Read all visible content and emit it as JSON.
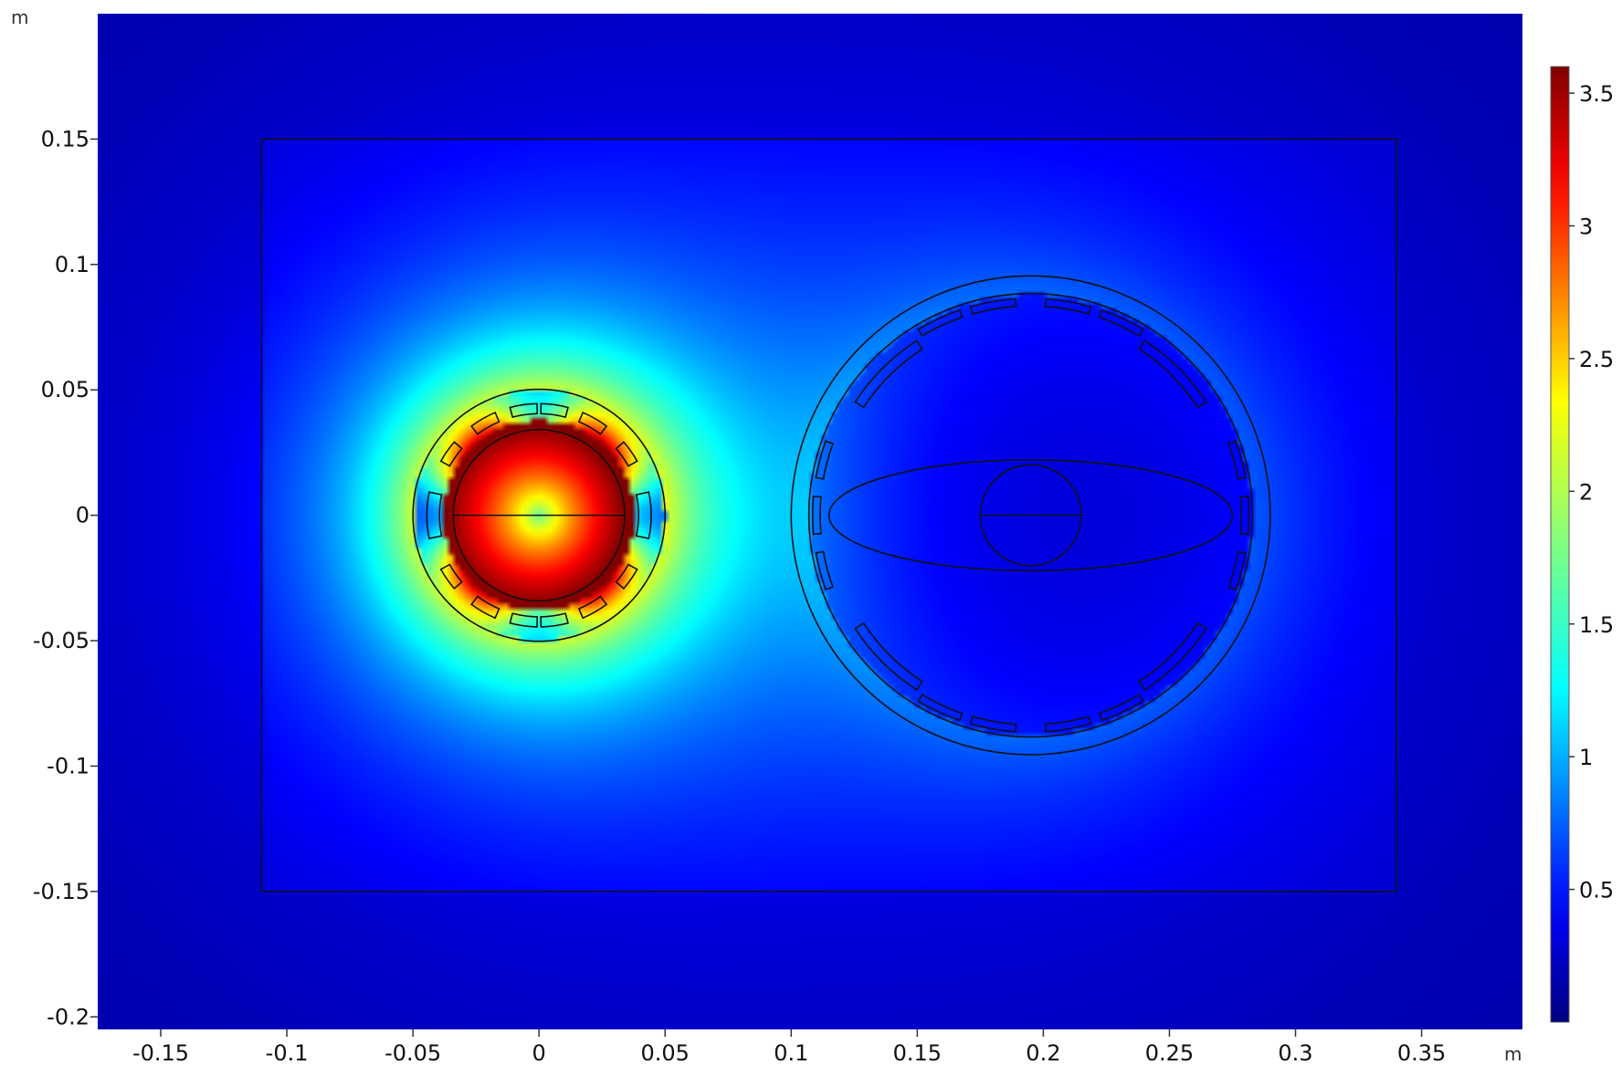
{
  "chart_data": {
    "type": "heatmap",
    "title": "",
    "xlabel": "m",
    "ylabel": "m",
    "xlim": [
      -0.175,
      0.39
    ],
    "ylim": [
      -0.205,
      0.2
    ],
    "x_ticks": [
      {
        "value": -0.15,
        "label": "-0.15"
      },
      {
        "value": -0.1,
        "label": "-0.1"
      },
      {
        "value": -0.05,
        "label": "-0.05"
      },
      {
        "value": 0,
        "label": "0"
      },
      {
        "value": 0.05,
        "label": "0.05"
      },
      {
        "value": 0.1,
        "label": "0.1"
      },
      {
        "value": 0.15,
        "label": "0.15"
      },
      {
        "value": 0.2,
        "label": "0.2"
      },
      {
        "value": 0.25,
        "label": "0.25"
      },
      {
        "value": 0.3,
        "label": "0.3"
      },
      {
        "value": 0.35,
        "label": "0.35"
      }
    ],
    "y_ticks": [
      {
        "value": 0.15,
        "label": "0.15"
      },
      {
        "value": 0.1,
        "label": "0.1"
      },
      {
        "value": 0.05,
        "label": "0.05"
      },
      {
        "value": 0,
        "label": "0"
      },
      {
        "value": -0.05,
        "label": "-0.05"
      },
      {
        "value": -0.1,
        "label": "-0.1"
      },
      {
        "value": -0.15,
        "label": "-0.15"
      },
      {
        "value": -0.2,
        "label": "-0.2"
      }
    ],
    "colorbar": {
      "min": 0.0,
      "max": 3.6,
      "ticks": [
        {
          "value": 0.5,
          "label": "0.5"
        },
        {
          "value": 1,
          "label": "1"
        },
        {
          "value": 1.5,
          "label": "1.5"
        },
        {
          "value": 2,
          "label": "2"
        },
        {
          "value": 2.5,
          "label": "2.5"
        },
        {
          "value": 3,
          "label": "3"
        },
        {
          "value": 3.5,
          "label": "3.5"
        }
      ],
      "colormap": "rainbow"
    },
    "field_sources": [
      {
        "name": "small-coil",
        "center": [
          0,
          0
        ],
        "peak": 3.4,
        "ring_radius": 0.037
      },
      {
        "name": "large-coil",
        "center": [
          0.195,
          0
        ],
        "peak": 0.55,
        "ring_radius": 0.088
      }
    ],
    "geometry": {
      "boundary_box": {
        "x": [
          -0.11,
          0.34
        ],
        "y": [
          -0.15,
          0.15
        ]
      },
      "small_assembly": {
        "center": [
          0,
          0
        ],
        "outer_radius": 0.05,
        "inner_radius": 0.034
      },
      "large_assembly": {
        "center": [
          0.195,
          0
        ],
        "outer_radius": 0.095,
        "inner_radius": 0.088,
        "ellipse_rx": 0.08,
        "ellipse_ry": 0.022,
        "inner_circle_radius": 0.02
      }
    }
  }
}
